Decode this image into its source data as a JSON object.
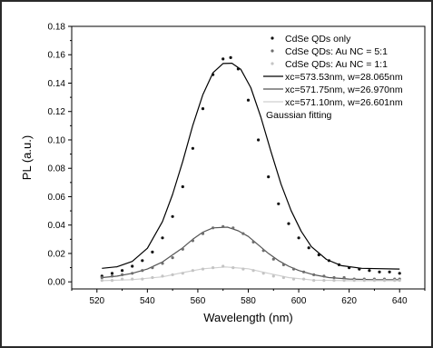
{
  "chart_data": {
    "type": "line",
    "xlabel": "Wavelength (nm)",
    "ylabel": "PL (a.u.)",
    "xlim": [
      510,
      650
    ],
    "ylim": [
      -0.005,
      0.18
    ],
    "x_ticks": [
      520,
      540,
      560,
      580,
      600,
      620,
      640
    ],
    "x_tick_labels": [
      "520",
      "540",
      "560",
      "580",
      "600",
      "620",
      "640"
    ],
    "y_ticks": [
      0.0,
      0.02,
      0.04,
      0.06,
      0.08,
      0.1,
      0.12,
      0.14,
      0.16,
      0.18
    ],
    "y_tick_labels": [
      "0.00",
      "0.02",
      "0.04",
      "0.06",
      "0.08",
      "0.10",
      "0.12",
      "0.14",
      "0.16",
      "0.18"
    ],
    "legend_position": "top-right",
    "legend_note": "Gaussian fitting",
    "series": [
      {
        "name": "CdSe QDs only",
        "kind": "scatter",
        "color": "#111111",
        "x": [
          522,
          526,
          530,
          534,
          538,
          542,
          546,
          550,
          554,
          558,
          562,
          566,
          570,
          573,
          576,
          580,
          584,
          588,
          592,
          596,
          600,
          604,
          608,
          612,
          616,
          620,
          624,
          628,
          632,
          636,
          640
        ],
        "y": [
          0.004,
          0.006,
          0.008,
          0.011,
          0.015,
          0.021,
          0.031,
          0.046,
          0.067,
          0.094,
          0.122,
          0.146,
          0.157,
          0.158,
          0.15,
          0.128,
          0.1,
          0.074,
          0.055,
          0.041,
          0.031,
          0.024,
          0.019,
          0.015,
          0.012,
          0.01,
          0.009,
          0.008,
          0.007,
          0.007,
          0.006
        ]
      },
      {
        "name": "CdSe QDs: Au NC = 5:1",
        "kind": "scatter",
        "color": "#6e6e6e",
        "x": [
          522,
          526,
          530,
          534,
          538,
          542,
          546,
          550,
          554,
          558,
          562,
          566,
          570,
          574,
          578,
          582,
          586,
          590,
          594,
          598,
          602,
          606,
          610,
          614,
          618,
          622,
          626,
          630,
          634,
          638,
          640
        ],
        "y": [
          0.003,
          0.004,
          0.005,
          0.006,
          0.008,
          0.01,
          0.013,
          0.017,
          0.023,
          0.029,
          0.034,
          0.038,
          0.039,
          0.038,
          0.034,
          0.028,
          0.022,
          0.016,
          0.012,
          0.009,
          0.007,
          0.005,
          0.004,
          0.003,
          0.003,
          0.002,
          0.002,
          0.002,
          0.002,
          0.002,
          0.002
        ]
      },
      {
        "name": "CdSe QDs: Au NC = 1:1",
        "kind": "scatter",
        "color": "#c4c4c4",
        "x": [
          522,
          526,
          530,
          534,
          538,
          542,
          546,
          550,
          554,
          558,
          562,
          566,
          570,
          574,
          578,
          582,
          586,
          590,
          594,
          598,
          602,
          606,
          610,
          614,
          618,
          622,
          626,
          630,
          634,
          638,
          640
        ],
        "y": [
          0.001,
          0.001,
          0.002,
          0.002,
          0.002,
          0.003,
          0.004,
          0.005,
          0.006,
          0.008,
          0.009,
          0.01,
          0.011,
          0.01,
          0.009,
          0.008,
          0.006,
          0.004,
          0.003,
          0.002,
          0.002,
          0.001,
          0.001,
          0.001,
          0.001,
          0.001,
          0.001,
          0.001,
          0.001,
          0.001,
          0.001
        ]
      },
      {
        "name": "xc=573.53nm, w=28.065nm",
        "kind": "line",
        "color": "#000000",
        "x": [
          522,
          528,
          534,
          540,
          546,
          550,
          554,
          558,
          562,
          566,
          570,
          573.53,
          577,
          581,
          585,
          589,
          593,
          597,
          601,
          605,
          611,
          617,
          625,
          640
        ],
        "y": [
          0.0095,
          0.0106,
          0.0144,
          0.0237,
          0.0425,
          0.0616,
          0.0848,
          0.1103,
          0.1319,
          0.1473,
          0.1538,
          0.154,
          0.1498,
          0.1368,
          0.116,
          0.0918,
          0.0688,
          0.0502,
          0.0355,
          0.0248,
          0.0158,
          0.0114,
          0.0095,
          0.009
        ]
      },
      {
        "name": "xc=571.75nm, w=26.970nm",
        "kind": "line",
        "color": "#555555",
        "x": [
          522,
          528,
          534,
          540,
          546,
          550,
          554,
          558,
          562,
          566,
          571.75,
          576,
          580,
          584,
          588,
          592,
          596,
          600,
          606,
          612,
          620,
          630,
          640
        ],
        "y": [
          0.003,
          0.004,
          0.006,
          0.009,
          0.014,
          0.019,
          0.024,
          0.03,
          0.035,
          0.038,
          0.0385,
          0.036,
          0.032,
          0.026,
          0.02,
          0.015,
          0.011,
          0.008,
          0.005,
          0.003,
          0.002,
          0.0015,
          0.0015
        ]
      },
      {
        "name": "xc=571.10nm, w=26.601nm",
        "kind": "line",
        "color": "#cfcfcf",
        "x": [
          522,
          534,
          546,
          554,
          562,
          571.1,
          580,
          588,
          596,
          606,
          620,
          640
        ],
        "y": [
          0.0008,
          0.0015,
          0.0035,
          0.0065,
          0.0092,
          0.0105,
          0.0092,
          0.006,
          0.003,
          0.0012,
          0.0008,
          0.0008
        ]
      }
    ]
  }
}
